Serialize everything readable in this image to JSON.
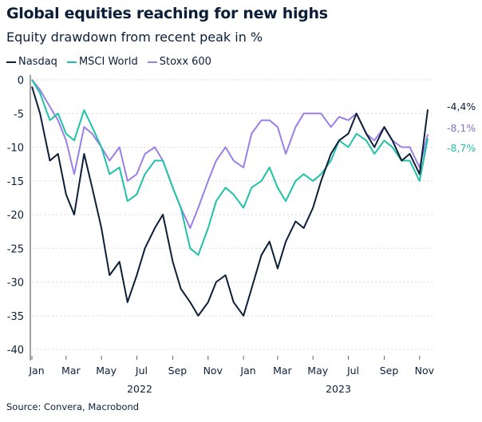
{
  "chart_data": {
    "type": "line",
    "title": "Global equities reaching for new highs",
    "subtitle": "Equity drawdown from recent peak in %",
    "source": "Source: Convera, Macrobond",
    "ylim": [
      -40,
      0
    ],
    "y_ticks": [
      "0",
      "-5",
      "-10",
      "-15",
      "-20",
      "-25",
      "-30",
      "-35",
      "-40"
    ],
    "y_tick_values": [
      0,
      -5,
      -10,
      -15,
      -20,
      -25,
      -30,
      -35,
      -40
    ],
    "x_tick_labels": [
      "Jan",
      "Mar",
      "May",
      "Jul",
      "Sep",
      "Nov",
      "Jan",
      "Mar",
      "May",
      "Jul",
      "Sep",
      "Nov"
    ],
    "x_tick_dates": [
      "2022-01-01",
      "2022-03-01",
      "2022-05-01",
      "2022-07-01",
      "2022-09-01",
      "2022-11-01",
      "2023-01-01",
      "2023-03-01",
      "2023-05-01",
      "2023-07-01",
      "2023-09-01",
      "2023-11-01"
    ],
    "year_labels": [
      "2022",
      "2023"
    ],
    "grid": "horizontal dotted",
    "legend": "top-left",
    "x": [
      "2022-01-01",
      "2022-01-15",
      "2022-02-01",
      "2022-02-15",
      "2022-03-01",
      "2022-03-15",
      "2022-04-01",
      "2022-04-15",
      "2022-05-01",
      "2022-05-15",
      "2022-06-01",
      "2022-06-15",
      "2022-07-01",
      "2022-07-15",
      "2022-08-01",
      "2022-08-15",
      "2022-09-01",
      "2022-09-15",
      "2022-10-01",
      "2022-10-15",
      "2022-11-01",
      "2022-11-15",
      "2022-12-01",
      "2022-12-15",
      "2023-01-01",
      "2023-01-15",
      "2023-02-01",
      "2023-02-15",
      "2023-03-01",
      "2023-03-15",
      "2023-04-01",
      "2023-04-15",
      "2023-05-01",
      "2023-05-15",
      "2023-06-01",
      "2023-06-15",
      "2023-07-01",
      "2023-07-15",
      "2023-08-01",
      "2023-08-15",
      "2023-09-01",
      "2023-09-15",
      "2023-10-01",
      "2023-10-15",
      "2023-11-01",
      "2023-11-15"
    ],
    "series": [
      {
        "name": "Nasdaq",
        "color": "#0b1f3a",
        "end_label": "-4,4%",
        "values": [
          -1,
          -5,
          -12,
          -11,
          -17,
          -20,
          -11,
          -16,
          -22,
          -29,
          -27,
          -33,
          -29,
          -25,
          -22,
          -20,
          -27,
          -31,
          -33,
          -35,
          -33,
          -30,
          -29,
          -33,
          -35,
          -31,
          -26,
          -24,
          -28,
          -24,
          -21,
          -22,
          -19,
          -15,
          -11,
          -9,
          -8,
          -5,
          -8,
          -10,
          -7,
          -9,
          -12,
          -11,
          -14,
          -4.4
        ]
      },
      {
        "name": "MSCI World",
        "color": "#1fc2a7",
        "end_label": "-8,7%",
        "values": [
          0,
          -2,
          -6,
          -5,
          -8,
          -9,
          -4.5,
          -7,
          -10,
          -14,
          -13,
          -18,
          -17,
          -14,
          -12,
          -12,
          -16,
          -19,
          -25,
          -26,
          -22,
          -18,
          -16,
          -17,
          -19,
          -16,
          -15,
          -13,
          -16,
          -18,
          -15,
          -14,
          -15,
          -14,
          -12,
          -9,
          -10,
          -8,
          -9,
          -11,
          -9,
          -10,
          -12,
          -12,
          -15,
          -8.7
        ]
      },
      {
        "name": "Stoxx 600",
        "color": "#9b7fe8",
        "end_label": "-8,1%",
        "values": [
          0,
          -1.5,
          -4,
          -6,
          -9,
          -14,
          -7,
          -8,
          -10,
          -12,
          -10,
          -15,
          -14,
          -11,
          -10,
          -12,
          -16,
          -19,
          -22,
          -19,
          -15,
          -12,
          -10,
          -12,
          -13,
          -8,
          -6,
          -6,
          -7,
          -11,
          -7,
          -5,
          -5,
          -5,
          -7,
          -5.5,
          -6,
          -5,
          -8,
          -9,
          -7,
          -9,
          -10,
          -10,
          -13,
          -8.1
        ]
      }
    ]
  }
}
